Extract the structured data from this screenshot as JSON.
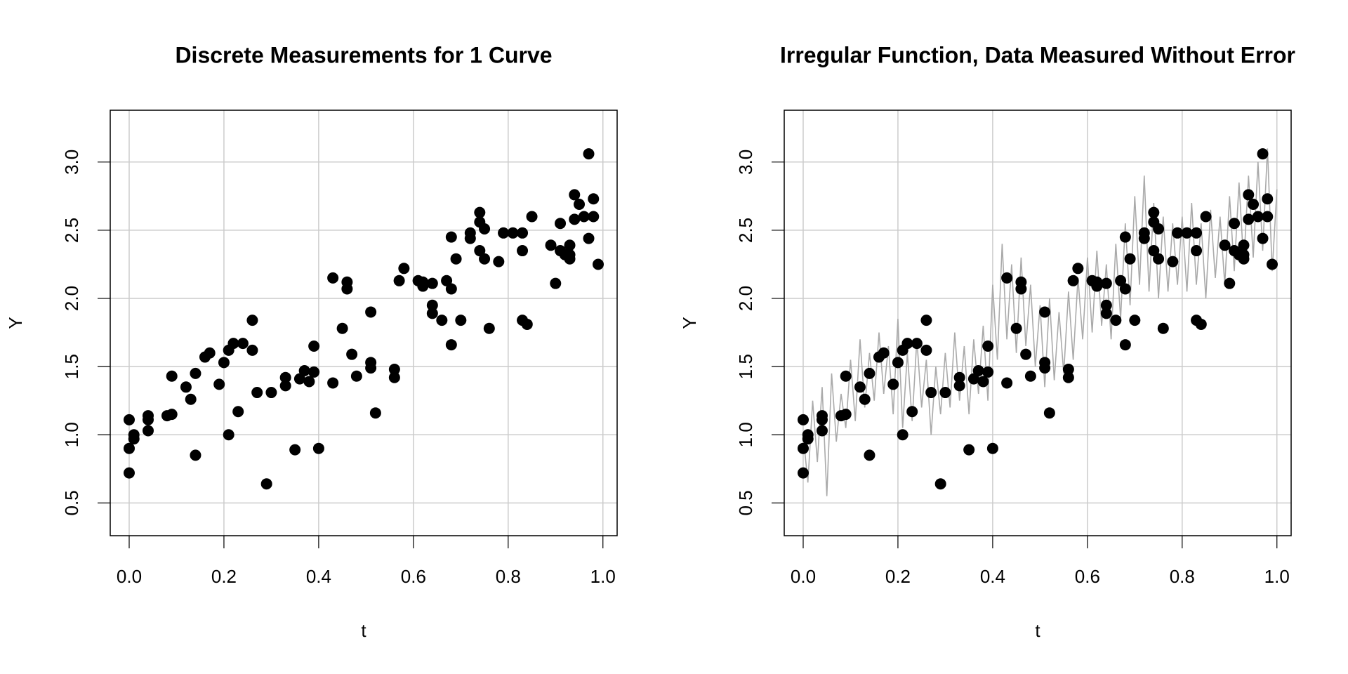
{
  "chart_data": [
    {
      "type": "scatter",
      "title": "Discrete Measurements for 1 Curve",
      "xlabel": "t",
      "ylabel": "Y",
      "xlim": [
        -0.04,
        1.03
      ],
      "ylim": [
        0.26,
        3.38
      ],
      "xticks": [
        {
          "value": 0,
          "label": "0.0"
        },
        0.2,
        0.4,
        0.6,
        0.8,
        {
          "value": 1,
          "label": "1.0"
        }
      ],
      "yticks": [
        0.5,
        {
          "value": 1,
          "label": "1.0"
        },
        1.5,
        {
          "value": 2,
          "label": "2.0"
        },
        2.5,
        {
          "value": 3,
          "label": "3.0"
        }
      ],
      "grid": true,
      "series": [
        {
          "type": "scatter",
          "color": "#000000",
          "x": [
            0.0,
            0.0,
            0.0,
            0.01,
            0.01,
            0.04,
            0.04,
            0.04,
            0.08,
            0.09,
            0.09,
            0.12,
            0.13,
            0.14,
            0.14,
            0.16,
            0.17,
            0.19,
            0.2,
            0.21,
            0.21,
            0.22,
            0.23,
            0.24,
            0.26,
            0.26,
            0.27,
            0.29,
            0.3,
            0.33,
            0.33,
            0.35,
            0.36,
            0.37,
            0.38,
            0.39,
            0.39,
            0.4,
            0.43,
            0.43,
            0.45,
            0.46,
            0.46,
            0.47,
            0.48,
            0.51,
            0.51,
            0.51,
            0.52,
            0.56,
            0.56,
            0.57,
            0.58,
            0.61,
            0.62,
            0.62,
            0.64,
            0.64,
            0.64,
            0.66,
            0.67,
            0.68,
            0.68,
            0.68,
            0.69,
            0.7,
            0.72,
            0.72,
            0.74,
            0.74,
            0.74,
            0.75,
            0.75,
            0.76,
            0.78,
            0.79,
            0.81,
            0.83,
            0.83,
            0.83,
            0.84,
            0.85,
            0.89,
            0.9,
            0.91,
            0.91,
            0.92,
            0.93,
            0.93,
            0.94,
            0.93,
            0.94,
            0.95,
            0.96,
            0.97,
            0.97,
            0.98,
            0.98,
            0.99
          ],
          "values": [
            0.72,
            0.9,
            1.11,
            1.0,
            0.97,
            1.14,
            1.03,
            1.11,
            1.14,
            1.15,
            1.43,
            1.35,
            1.26,
            1.45,
            0.85,
            1.57,
            1.6,
            1.37,
            1.53,
            1.0,
            1.62,
            1.67,
            1.17,
            1.67,
            1.84,
            1.62,
            1.31,
            0.64,
            1.31,
            1.36,
            1.42,
            0.89,
            1.41,
            1.47,
            1.39,
            1.65,
            1.46,
            0.9,
            1.38,
            2.15,
            1.78,
            2.07,
            2.12,
            1.59,
            1.43,
            1.9,
            1.53,
            1.49,
            1.16,
            1.42,
            1.48,
            2.13,
            2.22,
            2.13,
            2.09,
            2.12,
            1.95,
            1.89,
            2.11,
            1.84,
            2.13,
            1.66,
            2.45,
            2.07,
            2.29,
            1.84,
            2.48,
            2.44,
            2.56,
            2.63,
            2.35,
            2.29,
            2.51,
            1.78,
            2.27,
            2.48,
            2.48,
            2.48,
            2.35,
            1.84,
            1.81,
            2.6,
            2.39,
            2.11,
            2.55,
            2.35,
            2.32,
            2.32,
            2.39,
            2.58,
            2.29,
            2.76,
            2.69,
            2.6,
            3.06,
            2.44,
            2.6,
            2.73,
            2.25
          ]
        }
      ]
    },
    {
      "type": "scatter",
      "title": "Irregular Function, Data Measured Without Error",
      "xlabel": "t",
      "ylabel": "Y",
      "xlim": [
        -0.04,
        1.03
      ],
      "ylim": [
        0.26,
        3.38
      ],
      "xticks": [
        {
          "value": 0,
          "label": "0.0"
        },
        0.2,
        0.4,
        0.6,
        0.8,
        {
          "value": 1,
          "label": "1.0"
        }
      ],
      "yticks": [
        0.5,
        {
          "value": 1,
          "label": "1.0"
        },
        1.5,
        {
          "value": 2,
          "label": "2.0"
        },
        2.5,
        {
          "value": 3,
          "label": "3.0"
        }
      ],
      "grid": true,
      "series": [
        {
          "type": "line",
          "color": "#aaaaaa",
          "x": [
            0,
            0.01,
            0.02,
            0.03,
            0.04,
            0.05,
            0.06,
            0.07,
            0.08,
            0.09,
            0.1,
            0.11,
            0.12,
            0.13,
            0.14,
            0.15,
            0.16,
            0.17,
            0.18,
            0.19,
            0.2,
            0.21,
            0.22,
            0.23,
            0.24,
            0.25,
            0.26,
            0.27,
            0.28,
            0.29,
            0.3,
            0.31,
            0.32,
            0.33,
            0.34,
            0.35,
            0.36,
            0.37,
            0.38,
            0.39,
            0.4,
            0.41,
            0.42,
            0.43,
            0.44,
            0.45,
            0.46,
            0.47,
            0.48,
            0.49,
            0.5,
            0.51,
            0.52,
            0.53,
            0.54,
            0.55,
            0.56,
            0.57,
            0.58,
            0.59,
            0.6,
            0.61,
            0.62,
            0.63,
            0.64,
            0.65,
            0.66,
            0.67,
            0.68,
            0.69,
            0.7,
            0.71,
            0.72,
            0.73,
            0.74,
            0.75,
            0.76,
            0.77,
            0.78,
            0.79,
            0.8,
            0.81,
            0.82,
            0.83,
            0.84,
            0.85,
            0.86,
            0.87,
            0.88,
            0.89,
            0.9,
            0.91,
            0.92,
            0.93,
            0.94,
            0.95,
            0.96,
            0.97,
            0.98,
            0.99,
            1
          ],
          "values": [
            1.0,
            0.65,
            1.25,
            0.8,
            1.35,
            0.55,
            1.45,
            0.95,
            1.3,
            1.05,
            1.55,
            1.1,
            1.7,
            1.2,
            1.6,
            1.25,
            1.75,
            1.3,
            1.65,
            1.15,
            1.85,
            1.05,
            1.6,
            1.1,
            1.7,
            1.2,
            1.55,
            1.0,
            1.5,
            1.15,
            1.6,
            1.2,
            1.75,
            1.25,
            1.65,
            1.15,
            1.7,
            1.3,
            1.8,
            1.25,
            2.1,
            1.55,
            2.4,
            1.7,
            2.25,
            1.6,
            2.3,
            1.65,
            2.1,
            1.5,
            1.95,
            1.35,
            2.0,
            1.4,
            1.9,
            1.45,
            2.05,
            1.55,
            2.15,
            1.7,
            2.3,
            1.75,
            2.35,
            1.8,
            2.25,
            1.7,
            2.4,
            1.85,
            2.55,
            1.95,
            2.75,
            2.1,
            2.9,
            2.05,
            2.7,
            2.0,
            2.6,
            2.05,
            2.55,
            2.1,
            2.6,
            2.05,
            2.7,
            2.1,
            2.55,
            2.0,
            2.65,
            2.15,
            2.6,
            2.1,
            2.75,
            2.2,
            2.85,
            2.25,
            2.9,
            2.3,
            3.0,
            2.35,
            3.1,
            2.2,
            2.8
          ]
        },
        {
          "type": "scatter",
          "color": "#000000",
          "x": [
            0.0,
            0.0,
            0.0,
            0.01,
            0.01,
            0.04,
            0.04,
            0.04,
            0.08,
            0.09,
            0.09,
            0.12,
            0.13,
            0.14,
            0.14,
            0.16,
            0.17,
            0.19,
            0.2,
            0.21,
            0.21,
            0.22,
            0.23,
            0.24,
            0.26,
            0.26,
            0.27,
            0.29,
            0.3,
            0.33,
            0.33,
            0.35,
            0.36,
            0.37,
            0.38,
            0.39,
            0.39,
            0.4,
            0.43,
            0.43,
            0.45,
            0.46,
            0.46,
            0.47,
            0.48,
            0.51,
            0.51,
            0.51,
            0.52,
            0.56,
            0.56,
            0.57,
            0.58,
            0.61,
            0.62,
            0.62,
            0.64,
            0.64,
            0.64,
            0.66,
            0.67,
            0.68,
            0.68,
            0.68,
            0.69,
            0.7,
            0.72,
            0.72,
            0.74,
            0.74,
            0.74,
            0.75,
            0.75,
            0.76,
            0.78,
            0.79,
            0.81,
            0.83,
            0.83,
            0.83,
            0.84,
            0.85,
            0.89,
            0.9,
            0.91,
            0.91,
            0.92,
            0.93,
            0.93,
            0.94,
            0.93,
            0.94,
            0.95,
            0.96,
            0.97,
            0.97,
            0.98,
            0.98,
            0.99
          ],
          "values": [
            0.72,
            0.9,
            1.11,
            1.0,
            0.97,
            1.14,
            1.03,
            1.11,
            1.14,
            1.15,
            1.43,
            1.35,
            1.26,
            1.45,
            0.85,
            1.57,
            1.6,
            1.37,
            1.53,
            1.0,
            1.62,
            1.67,
            1.17,
            1.67,
            1.84,
            1.62,
            1.31,
            0.64,
            1.31,
            1.36,
            1.42,
            0.89,
            1.41,
            1.47,
            1.39,
            1.65,
            1.46,
            0.9,
            1.38,
            2.15,
            1.78,
            2.07,
            2.12,
            1.59,
            1.43,
            1.9,
            1.53,
            1.49,
            1.16,
            1.42,
            1.48,
            2.13,
            2.22,
            2.13,
            2.09,
            2.12,
            1.95,
            1.89,
            2.11,
            1.84,
            2.13,
            1.66,
            2.45,
            2.07,
            2.29,
            1.84,
            2.48,
            2.44,
            2.56,
            2.63,
            2.35,
            2.29,
            2.51,
            1.78,
            2.27,
            2.48,
            2.48,
            2.48,
            2.35,
            1.84,
            1.81,
            2.6,
            2.39,
            2.11,
            2.55,
            2.35,
            2.32,
            2.32,
            2.39,
            2.58,
            2.29,
            2.76,
            2.69,
            2.6,
            3.06,
            2.44,
            2.6,
            2.73,
            2.25
          ]
        }
      ]
    }
  ]
}
